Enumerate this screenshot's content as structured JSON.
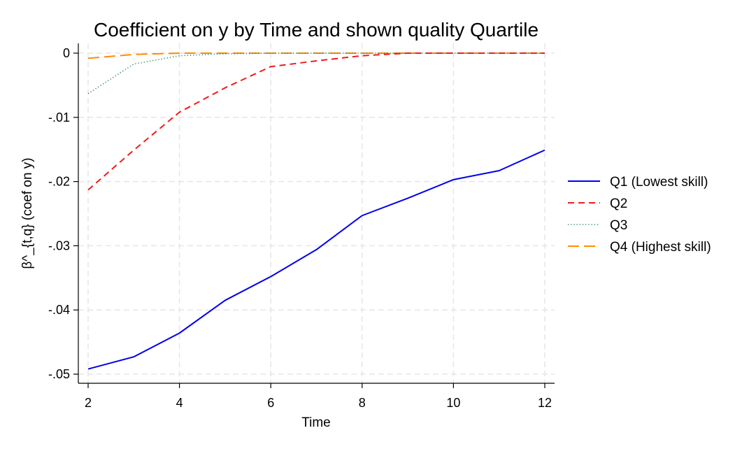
{
  "chart_data": {
    "type": "line",
    "title": "Coefficient on y by Time and shown quality Quartile",
    "xlabel": "Time",
    "ylabel": "β^_{t,q} (coef on y)",
    "xlim": [
      2,
      12
    ],
    "ylim": [
      -0.05,
      0
    ],
    "xticks": [
      2,
      4,
      6,
      8,
      10,
      12
    ],
    "xtick_labels": [
      "2",
      "4",
      "6",
      "8",
      "10",
      "12"
    ],
    "yticks": [
      0,
      -0.01,
      -0.02,
      -0.03,
      -0.04,
      -0.05
    ],
    "ytick_labels": [
      "0",
      "-.01",
      "-.02",
      "-.03",
      "-.04",
      "-.05"
    ],
    "grid": true,
    "legend_position": "right",
    "x": [
      2,
      3,
      4,
      5,
      6,
      7,
      8,
      9,
      10,
      11,
      12
    ],
    "series": [
      {
        "name": "Q1 (Lowest skill)",
        "color": "#0000ee",
        "dash": "solid",
        "values": [
          -0.0492,
          -0.0473,
          -0.0436,
          -0.0385,
          -0.0348,
          -0.0306,
          -0.0253,
          -0.0226,
          -0.0197,
          -0.0183,
          -0.0151
        ]
      },
      {
        "name": "Q2",
        "color": "#ee1c1c",
        "dash": "dashed",
        "values": [
          -0.0213,
          -0.0151,
          -0.0092,
          -0.0054,
          -0.0021,
          -0.0012,
          -0.0004,
          0.0,
          0.0,
          0.0,
          0.0
        ]
      },
      {
        "name": "Q3",
        "color": "#2e8b57",
        "dash": "dotted",
        "values": [
          -0.0063,
          -0.0017,
          -0.0004,
          -0.0001,
          0.0,
          0.0,
          0.0,
          0.0,
          0.0,
          0.0,
          0.0
        ]
      },
      {
        "name": "Q4 (Highest skill)",
        "color": "#ff8c00",
        "dash": "longdash",
        "values": [
          -0.0008,
          -0.0002,
          0.0,
          0.0,
          0.0,
          0.0,
          0.0,
          0.0,
          0.0,
          0.0,
          0.0
        ]
      }
    ]
  }
}
